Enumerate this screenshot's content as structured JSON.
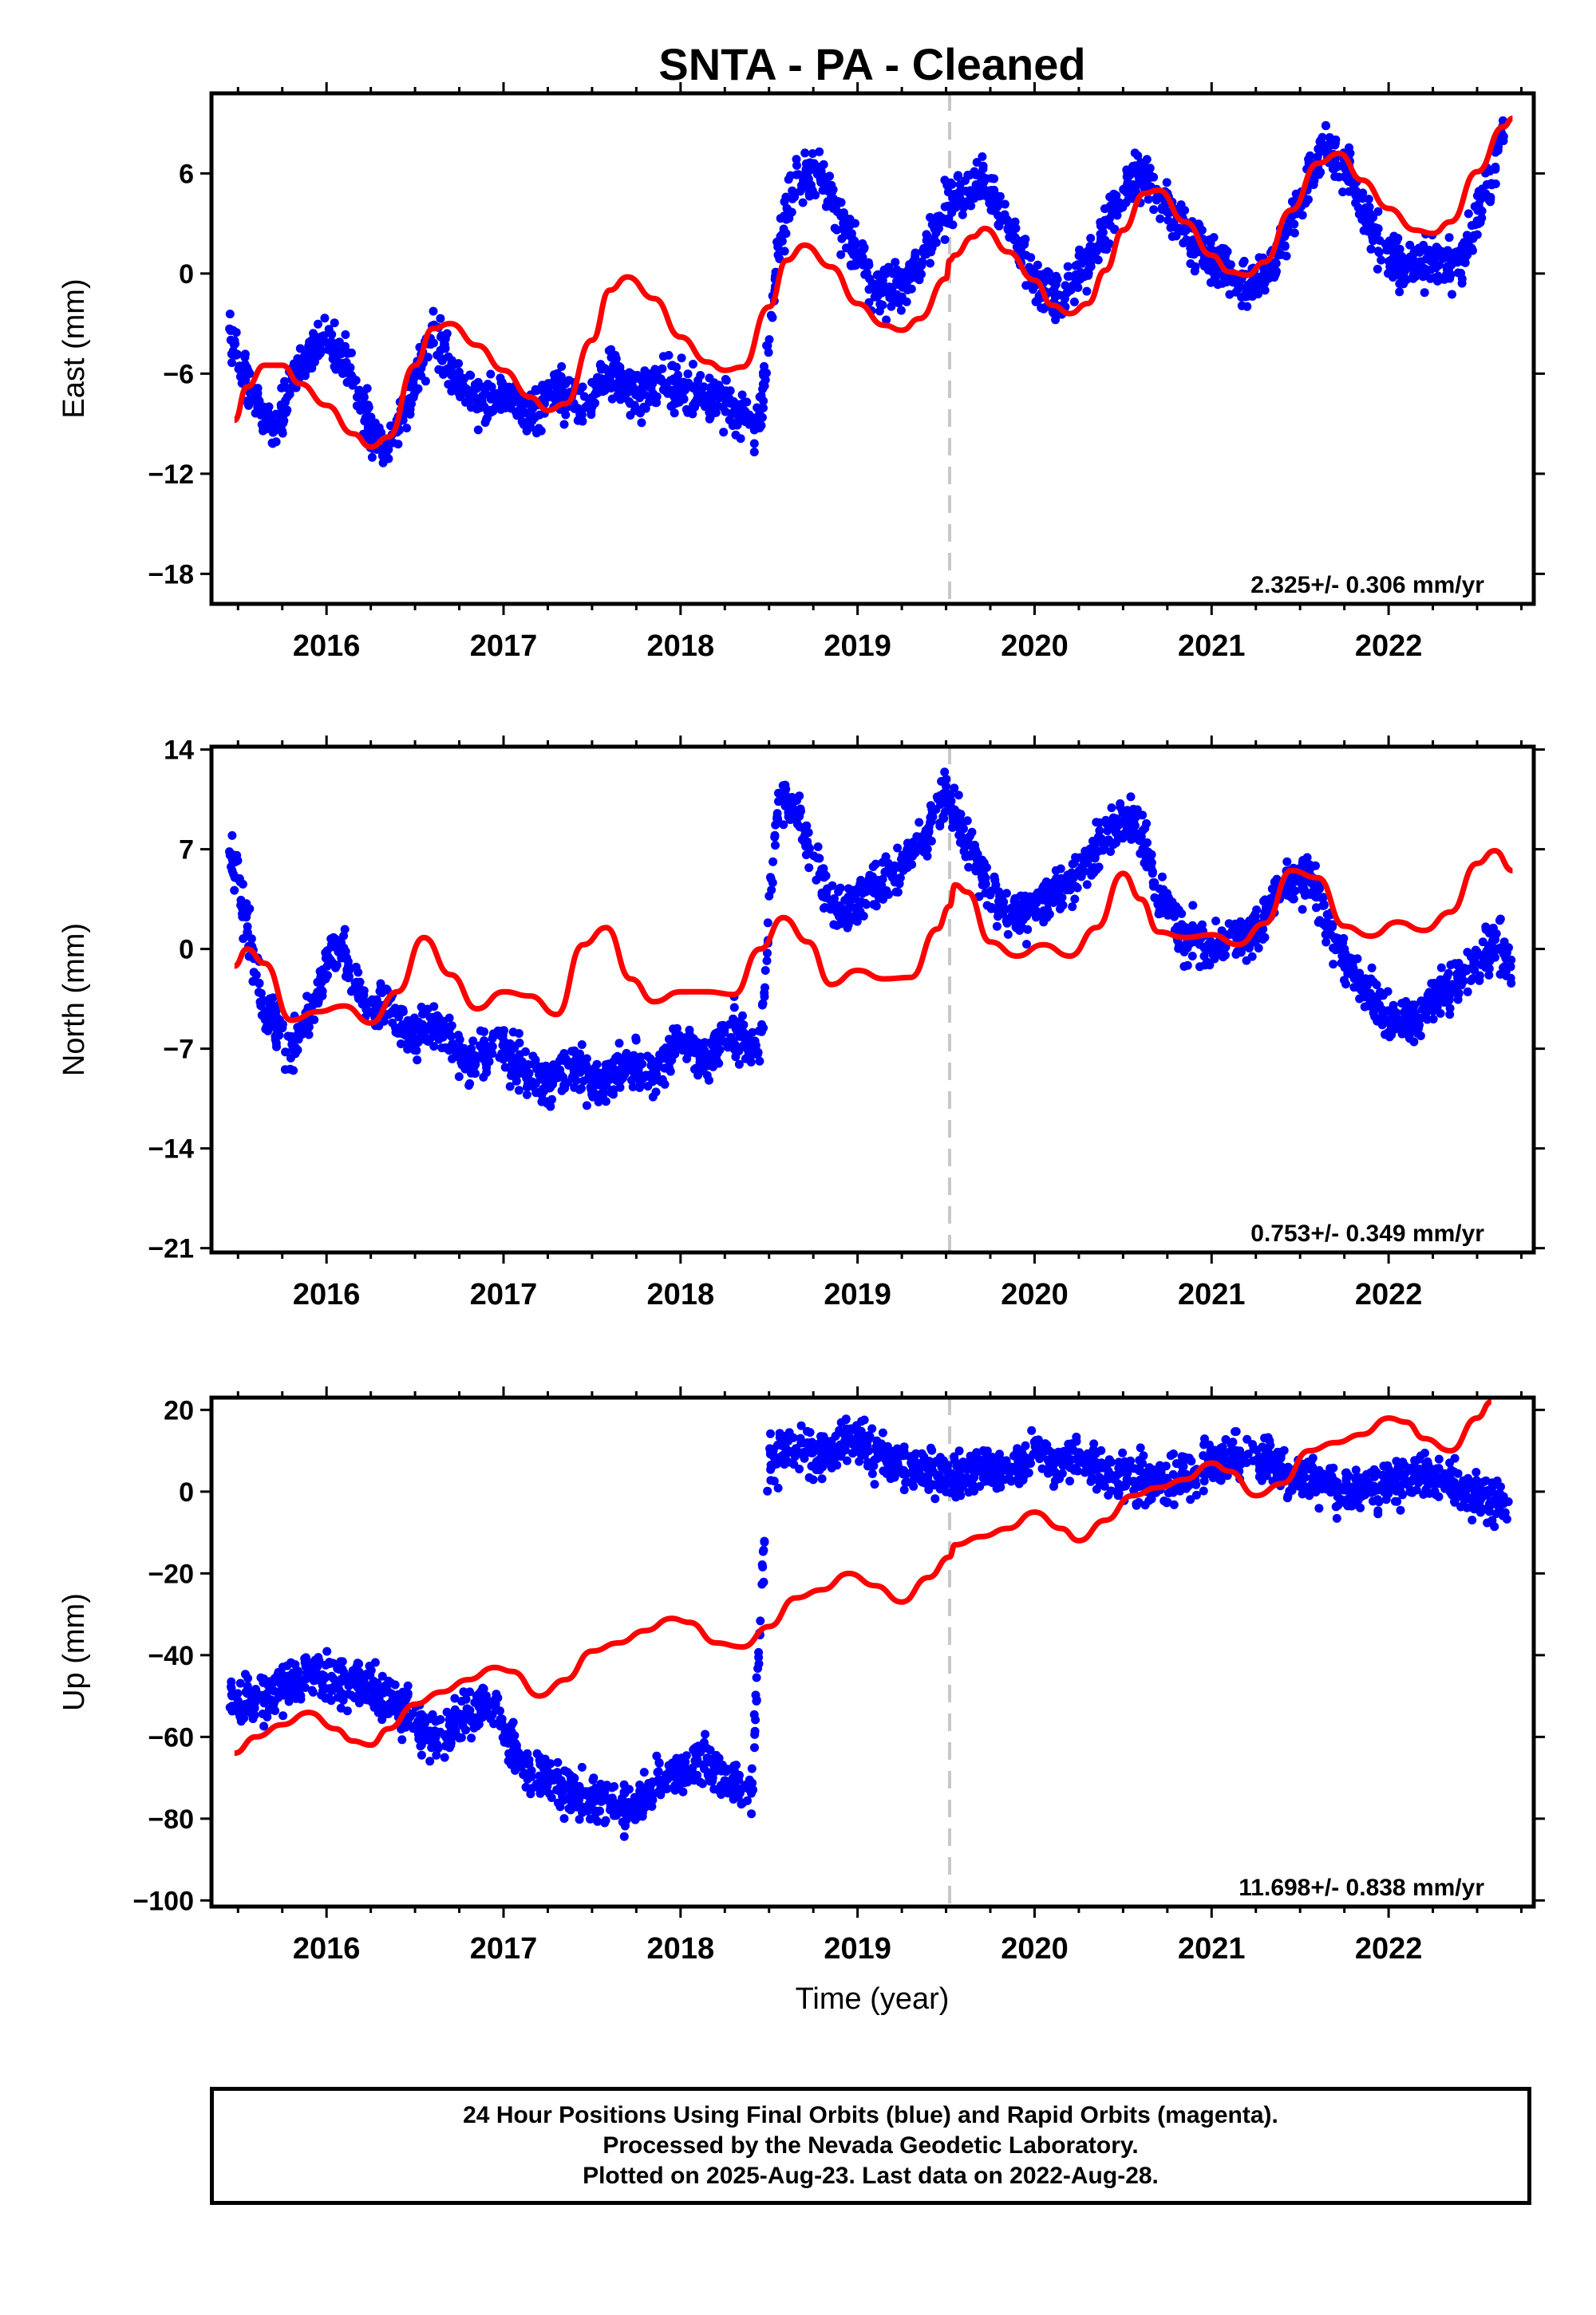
{
  "title": "SNTA  - PA - Cleaned",
  "colors": {
    "points": "#0000ff",
    "model": "#ff0000",
    "event_line": "#c8c8c8",
    "frame": "#000000"
  },
  "x_axis": {
    "label": "Time (year)",
    "ticks": [
      "2016",
      "2017",
      "2018",
      "2019",
      "2020",
      "2021",
      "2022"
    ]
  },
  "chart_data": [
    {
      "type": "scatter",
      "ylabel": "East (mm)",
      "xlim": [
        2015.35,
        2022.82
      ],
      "ylim": [
        -19.8,
        10.8
      ],
      "yticks": [
        6,
        0,
        -6,
        -12,
        -18
      ],
      "event_line_x": 2019.52,
      "rate_label": "2.325+/- 0.306 mm/yr",
      "series": [
        {
          "name": "Final Orbits (blue)",
          "x": [
            2015.45,
            2015.55,
            2015.7,
            2015.85,
            2016.0,
            2016.15,
            2016.25,
            2016.35,
            2016.5,
            2016.6,
            2016.75,
            2016.9,
            2017.0,
            2017.15,
            2017.3,
            2017.45,
            2017.6,
            2017.75,
            2017.9,
            2018.05,
            2018.2,
            2018.35,
            2018.45,
            2018.55,
            2018.65,
            2018.8,
            2018.95,
            2019.1,
            2019.25,
            2019.4,
            2019.55,
            2019.7,
            2019.85,
            2020.0,
            2020.15,
            2020.3,
            2020.45,
            2020.6,
            2020.75,
            2020.9,
            2021.05,
            2021.2,
            2021.35,
            2021.5,
            2021.65,
            2021.8,
            2021.95,
            2022.1,
            2022.25,
            2022.4,
            2022.55,
            2022.65
          ],
          "y": [
            -3.5,
            -6.5,
            -9.5,
            -5.5,
            -3.8,
            -6.0,
            -9.5,
            -10.5,
            -6.5,
            -3.5,
            -6.5,
            -8.0,
            -7.0,
            -8.5,
            -7.0,
            -8.0,
            -6.0,
            -7.5,
            -6.5,
            -7.0,
            -7.5,
            -8.5,
            -9.0,
            1.5,
            5.5,
            6.0,
            2.0,
            -1.0,
            -1.0,
            2.0,
            4.5,
            5.5,
            3.0,
            -0.5,
            -1.5,
            0.5,
            4.0,
            6.0,
            4.0,
            2.0,
            0.5,
            -1.0,
            0.5,
            4.5,
            7.5,
            5.5,
            1.5,
            0.5,
            1.0,
            0.5,
            5.0,
            8.5
          ]
        },
        {
          "name": "Model",
          "x": [
            2015.48,
            2015.55,
            2015.65,
            2015.75,
            2015.85,
            2016.0,
            2016.15,
            2016.25,
            2016.35,
            2016.5,
            2016.6,
            2016.7,
            2016.85,
            2017.0,
            2017.15,
            2017.25,
            2017.35,
            2017.5,
            2017.6,
            2017.7,
            2017.85,
            2018.0,
            2018.15,
            2018.25,
            2018.35,
            2018.5,
            2018.6,
            2018.7,
            2018.85,
            2019.0,
            2019.15,
            2019.25,
            2019.35,
            2019.5,
            2019.52,
            2019.55,
            2019.65,
            2019.72,
            2019.85,
            2020.0,
            2020.1,
            2020.2,
            2020.3,
            2020.4,
            2020.5,
            2020.62,
            2020.7,
            2020.85,
            2021.0,
            2021.1,
            2021.2,
            2021.3,
            2021.45,
            2021.6,
            2021.72,
            2021.85,
            2022.0,
            2022.15,
            2022.25,
            2022.35,
            2022.5,
            2022.65,
            2022.7
          ],
          "y": [
            -8.8,
            -6.8,
            -5.5,
            -5.5,
            -6.6,
            -7.9,
            -9.6,
            -10.4,
            -9.8,
            -5.5,
            -3.3,
            -3.0,
            -4.3,
            -5.8,
            -7.4,
            -8.2,
            -7.8,
            -4.0,
            -1.0,
            -0.2,
            -1.5,
            -3.8,
            -5.3,
            -5.8,
            -5.6,
            -2.0,
            0.8,
            1.7,
            0.4,
            -1.8,
            -3.1,
            -3.4,
            -2.7,
            -0.3,
            0.8,
            1.1,
            2.2,
            2.7,
            1.3,
            -0.4,
            -1.9,
            -2.4,
            -1.8,
            0.2,
            2.6,
            4.8,
            5.0,
            3.1,
            1.1,
            0.1,
            -0.1,
            0.7,
            3.8,
            6.6,
            7.2,
            5.6,
            3.9,
            2.6,
            2.4,
            3.1,
            6.1,
            8.8,
            9.3
          ]
        }
      ]
    },
    {
      "type": "scatter",
      "ylabel": "North (mm)",
      "xlim": [
        2015.35,
        2022.82
      ],
      "ylim": [
        -21.3,
        14.2
      ],
      "yticks": [
        14,
        7,
        0,
        -7,
        -14,
        -21
      ],
      "event_line_x": 2019.52,
      "rate_label": "0.753+/- 0.349 mm/yr",
      "series": [
        {
          "name": "Final Orbits (blue)",
          "x": [
            2015.45,
            2015.55,
            2015.65,
            2015.8,
            2015.95,
            2016.05,
            2016.2,
            2016.35,
            2016.5,
            2016.65,
            2016.8,
            2016.95,
            2017.1,
            2017.25,
            2017.4,
            2017.55,
            2017.7,
            2017.85,
            2018.0,
            2018.15,
            2018.3,
            2018.45,
            2018.55,
            2018.65,
            2018.75,
            2018.85,
            2018.95,
            2019.1,
            2019.25,
            2019.4,
            2019.5,
            2019.6,
            2019.75,
            2019.9,
            2020.05,
            2020.2,
            2020.35,
            2020.5,
            2020.6,
            2020.7,
            2020.85,
            2021.0,
            2021.1,
            2021.25,
            2021.4,
            2021.55,
            2021.7,
            2021.85,
            2022.0,
            2022.15,
            2022.3,
            2022.45,
            2022.6,
            2022.7
          ],
          "y": [
            7.5,
            1.5,
            -4.0,
            -7.5,
            -3.0,
            0.5,
            -3.5,
            -4.5,
            -6.0,
            -5.5,
            -8.0,
            -6.5,
            -8.0,
            -9.5,
            -8.0,
            -10.0,
            -7.5,
            -9.0,
            -6.5,
            -8.0,
            -5.5,
            -7.0,
            10.5,
            10.0,
            6.0,
            3.0,
            2.5,
            4.5,
            6.0,
            8.5,
            11.0,
            8.0,
            4.0,
            2.0,
            3.5,
            4.5,
            7.0,
            9.5,
            8.5,
            3.5,
            1.0,
            0.0,
            0.5,
            1.5,
            4.5,
            5.0,
            0.5,
            -2.5,
            -5.0,
            -5.0,
            -3.0,
            -1.5,
            0.5,
            -1.0
          ]
        },
        {
          "name": "Model",
          "x": [
            2015.48,
            2015.55,
            2015.65,
            2015.8,
            2015.95,
            2016.1,
            2016.25,
            2016.4,
            2016.55,
            2016.7,
            2016.85,
            2017.0,
            2017.15,
            2017.3,
            2017.45,
            2017.58,
            2017.72,
            2017.85,
            2018.0,
            2018.15,
            2018.3,
            2018.45,
            2018.58,
            2018.72,
            2018.85,
            2019.0,
            2019.15,
            2019.3,
            2019.45,
            2019.52,
            2019.55,
            2019.62,
            2019.75,
            2019.9,
            2020.05,
            2020.2,
            2020.35,
            2020.5,
            2020.6,
            2020.7,
            2020.85,
            2021.0,
            2021.15,
            2021.3,
            2021.45,
            2021.6,
            2021.75,
            2021.9,
            2022.05,
            2022.2,
            2022.35,
            2022.5,
            2022.6,
            2022.7
          ],
          "y": [
            -1.2,
            0.0,
            -1.0,
            -5.0,
            -4.4,
            -4.0,
            -5.2,
            -3.0,
            0.8,
            -1.8,
            -4.2,
            -3.0,
            -3.3,
            -4.6,
            0.3,
            1.5,
            -2.1,
            -3.7,
            -3.0,
            -3.0,
            -3.2,
            0.0,
            2.2,
            0.5,
            -2.5,
            -1.5,
            -2.1,
            -2.0,
            1.4,
            3.0,
            4.5,
            4.0,
            0.5,
            -0.5,
            0.3,
            -0.5,
            1.5,
            5.3,
            3.5,
            1.2,
            0.8,
            1.0,
            0.3,
            1.8,
            5.5,
            5.0,
            1.6,
            0.9,
            1.9,
            1.3,
            2.6,
            6.0,
            6.9,
            5.5
          ]
        }
      ]
    },
    {
      "type": "scatter",
      "ylabel": "Up (mm)",
      "xlim": [
        2015.35,
        2022.82
      ],
      "ylim": [
        -101.5,
        23
      ],
      "yticks": [
        20,
        0,
        -20,
        -40,
        -60,
        -80,
        -100
      ],
      "event_line_x": 2019.52,
      "rate_label": "11.698+/- 0.838 mm/yr",
      "series": [
        {
          "name": "Final Orbits (blue)",
          "x": [
            2015.45,
            2015.6,
            2015.75,
            2015.9,
            2016.05,
            2016.2,
            2016.35,
            2016.5,
            2016.65,
            2016.8,
            2016.95,
            2017.1,
            2017.25,
            2017.4,
            2017.55,
            2017.7,
            2017.85,
            2018.0,
            2018.15,
            2018.3,
            2018.4,
            2018.5,
            2018.65,
            2018.8,
            2018.95,
            2019.1,
            2019.25,
            2019.4,
            2019.55,
            2019.7,
            2019.85,
            2020.0,
            2020.15,
            2020.3,
            2020.45,
            2020.6,
            2020.75,
            2020.9,
            2021.05,
            2021.2,
            2021.35,
            2021.5,
            2021.65,
            2021.8,
            2021.95,
            2022.1,
            2022.25,
            2022.4,
            2022.55,
            2022.68
          ],
          "y": [
            -50,
            -52,
            -48,
            -44,
            -46,
            -48,
            -51,
            -56,
            -60,
            -54,
            -52,
            -67,
            -71,
            -74,
            -76,
            -78,
            -72,
            -68,
            -66,
            -72,
            -74,
            8,
            10,
            9,
            13,
            9,
            7,
            5,
            4,
            6,
            5,
            9,
            8,
            7,
            4,
            3,
            2,
            4,
            7,
            9,
            7,
            3,
            1,
            0,
            1,
            4,
            3,
            1,
            -1,
            -4
          ]
        },
        {
          "name": "Model",
          "x": [
            2015.48,
            2015.6,
            2015.75,
            2015.9,
            2016.05,
            2016.15,
            2016.25,
            2016.35,
            2016.5,
            2016.65,
            2016.8,
            2016.95,
            2017.05,
            2017.2,
            2017.35,
            2017.5,
            2017.65,
            2017.8,
            2017.95,
            2018.05,
            2018.2,
            2018.35,
            2018.5,
            2018.65,
            2018.8,
            2018.95,
            2019.1,
            2019.25,
            2019.4,
            2019.52,
            2019.55,
            2019.7,
            2019.85,
            2020.0,
            2020.15,
            2020.25,
            2020.4,
            2020.55,
            2020.7,
            2020.85,
            2021.0,
            2021.1,
            2021.25,
            2021.4,
            2021.55,
            2021.7,
            2021.85,
            2022.0,
            2022.1,
            2022.2,
            2022.35,
            2022.5,
            2022.58
          ],
          "y": [
            -64,
            -60,
            -57,
            -54,
            -58,
            -61,
            -62,
            -58,
            -52,
            -49,
            -46,
            -43,
            -44,
            -50,
            -46,
            -39,
            -37,
            -34,
            -31,
            -32,
            -37,
            -38,
            -33,
            -26,
            -24,
            -20,
            -23,
            -27,
            -21,
            -16,
            -13,
            -11,
            -9,
            -5,
            -9,
            -12,
            -7,
            -1,
            1,
            3,
            7,
            5,
            -1,
            2,
            10,
            12,
            14,
            18,
            17,
            13,
            10,
            18,
            22
          ]
        }
      ]
    }
  ],
  "footer": {
    "line1": "24 Hour Positions Using Final Orbits (blue) and Rapid Orbits (magenta).",
    "line2": "Processed by the Nevada Geodetic Laboratory.",
    "line3": "Plotted on 2025-Aug-23. Last data on 2022-Aug-28."
  }
}
